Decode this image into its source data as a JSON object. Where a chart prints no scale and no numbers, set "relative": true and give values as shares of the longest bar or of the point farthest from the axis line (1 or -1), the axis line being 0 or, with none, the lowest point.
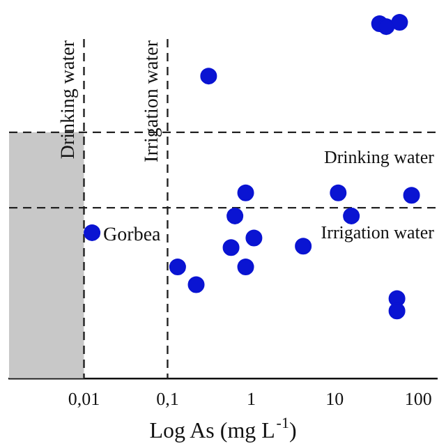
{
  "chart_data": {
    "type": "scatter",
    "relative": true,
    "xlabel": "Log As (mg L$^{-1}$)",
    "log": "x",
    "grid": false,
    "legend": false,
    "marker": "circle",
    "xlim": [
      0.00127,
      167
    ],
    "xticks": [
      {
        "value": 0.01,
        "label": "0,01"
      },
      {
        "value": 0.1,
        "label": "0,1"
      },
      1,
      10,
      100
    ],
    "series": [
      {
        "color": "#0a14d2",
        "x": [
          34.4,
          41.3,
          59.7,
          0.31,
          0.86,
          11,
          83,
          0.64,
          15.8,
          0.0125,
          1.08,
          0.575,
          4.2,
          0.132,
          0.86,
          0.22,
          55.5,
          55.5
        ],
        "values": [
          0.996,
          0.988,
          1.0,
          0.849,
          0.521,
          0.521,
          0.514,
          0.456,
          0.456,
          0.409,
          0.394,
          0.367,
          0.371,
          0.313,
          0.313,
          0.263,
          0.224,
          0.189
        ]
      }
    ],
    "ref_lines": [
      {
        "axis": "x",
        "value": 0.01,
        "label": "Drinking water",
        "line_style": "dashed"
      },
      {
        "axis": "x",
        "value": 0.1,
        "label": "Irrigation water",
        "line_style": "dashed"
      },
      {
        "axis": "y",
        "value": 0.691,
        "label": "Drinking water",
        "line_style": "dashed"
      },
      {
        "axis": "y",
        "value": 0.479,
        "label": "Irrigation water",
        "line_style": "dashed"
      }
    ],
    "bands": [
      {
        "axis": "x",
        "from": 0.00127,
        "to": 0.01,
        "color": "#c8c8c8"
      }
    ],
    "annotations": [
      {
        "text": "Gorbea",
        "x": 0.0125,
        "y": 0.409
      }
    ]
  }
}
